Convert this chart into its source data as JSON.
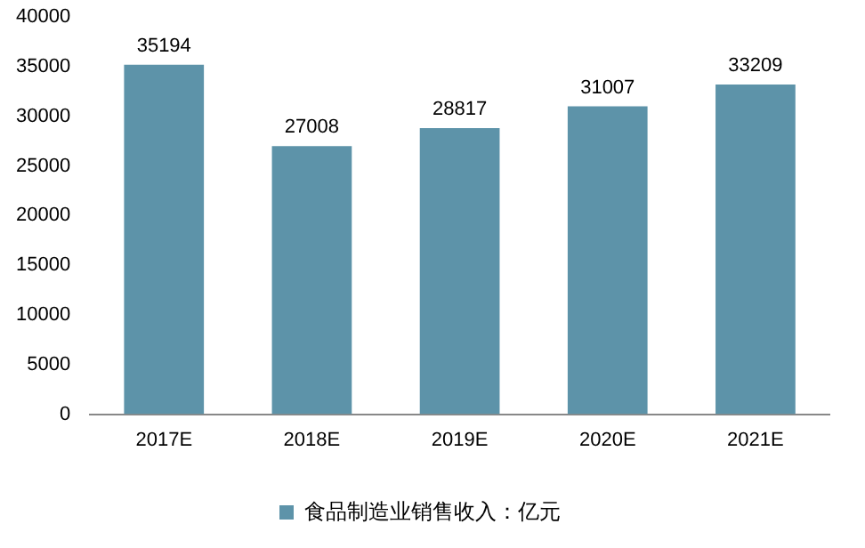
{
  "chart_data": {
    "type": "bar",
    "categories": [
      "2017E",
      "2018E",
      "2019E",
      "2020E",
      "2021E"
    ],
    "series": [
      {
        "name": "食品制造业销售收入：亿元",
        "color": "#5d93a9",
        "values": [
          35194,
          27008,
          28817,
          31007,
          33209
        ]
      }
    ],
    "ylim": [
      0,
      40000
    ],
    "yticks": [
      0,
      5000,
      10000,
      15000,
      20000,
      25000,
      30000,
      35000,
      40000
    ],
    "grid": false,
    "legend": "bottom",
    "data_labels": true
  }
}
